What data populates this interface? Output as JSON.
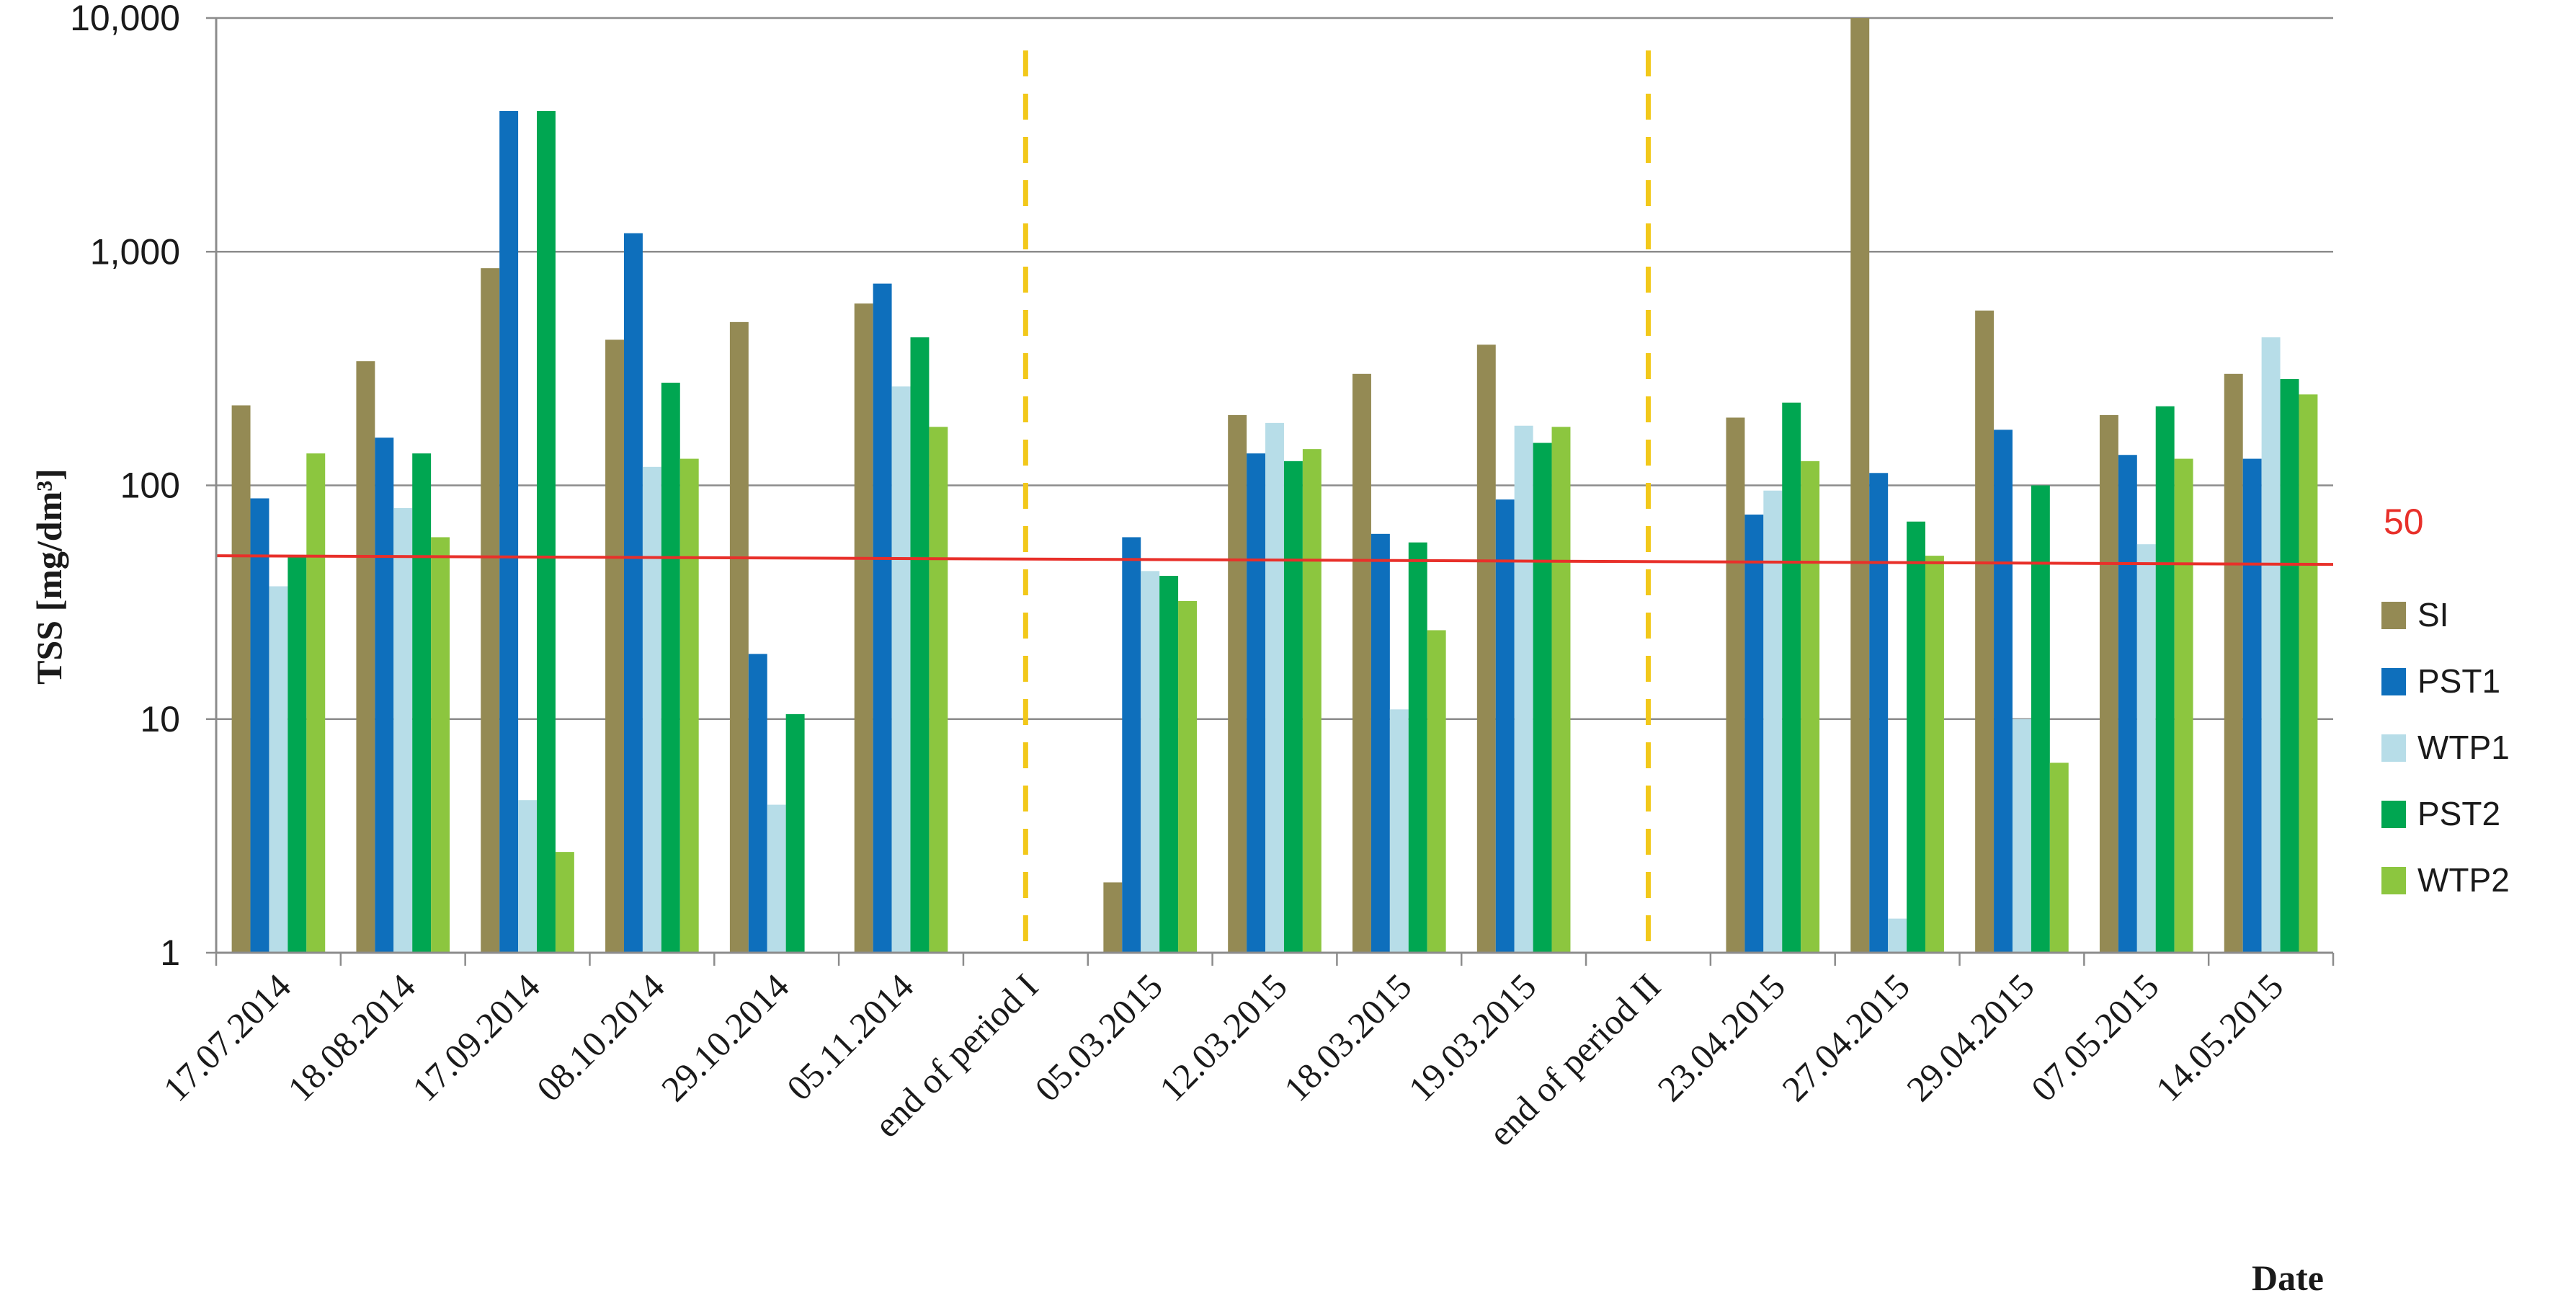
{
  "chart_data": {
    "type": "bar",
    "ylabel": "TSS [mg/dm³]",
    "xlabel": "Date",
    "y_scale": "log",
    "ylim": [
      1,
      10000
    ],
    "y_ticks": [
      {
        "value": 1,
        "label": "1"
      },
      {
        "value": 10,
        "label": "10"
      },
      {
        "value": 100,
        "label": "100"
      },
      {
        "value": 1000,
        "label": "1,000"
      },
      {
        "value": 10000,
        "label": "10,000"
      }
    ],
    "grid": true,
    "legend_position": "right",
    "categories": [
      "17.07.2014",
      "18.08.2014",
      "17.09.2014",
      "08.10.2014",
      "29.10.2014",
      "05.11.2014",
      "end of period I",
      "05.03.2015",
      "12.03.2015",
      "18.03.2015",
      "19.03.2015",
      "end of period II",
      "23.04.2015",
      "27.04.2015",
      "29.04.2015",
      "07.05.2015",
      "14.05.2015"
    ],
    "series": [
      {
        "name": "SI",
        "color": "#948a54",
        "values": [
          220,
          340,
          850,
          420,
          500,
          600,
          null,
          2,
          200,
          300,
          400,
          null,
          195,
          10000,
          560,
          200,
          300
        ]
      },
      {
        "name": "PST1",
        "color": "#0e6fbc",
        "values": [
          88,
          160,
          4000,
          1200,
          19,
          730,
          null,
          60,
          137,
          62,
          87,
          null,
          75,
          113,
          173,
          135,
          130
        ]
      },
      {
        "name": "WTP1",
        "color": "#b7dde8",
        "values": [
          37,
          80,
          4.5,
          120,
          4.3,
          265,
          null,
          43,
          185,
          11,
          180,
          null,
          95,
          1.4,
          10,
          56,
          430
        ]
      },
      {
        "name": "PST2",
        "color": "#00a651",
        "values": [
          50,
          137,
          4000,
          275,
          10.5,
          430,
          null,
          41,
          127,
          57,
          152,
          null,
          226,
          70,
          100,
          218,
          285
        ]
      },
      {
        "name": "WTP2",
        "color": "#8cc63f",
        "values": [
          137,
          60,
          2.7,
          130,
          null,
          178,
          null,
          32,
          143,
          24,
          178,
          null,
          127,
          50,
          6.5,
          130,
          245
        ]
      }
    ],
    "reference_line": {
      "value": 50,
      "label": "50",
      "color": "#e8302a"
    },
    "period_markers": {
      "categories": [
        "end of period I",
        "end of period II"
      ],
      "color": "#f2c81a",
      "style": "dashed"
    }
  }
}
